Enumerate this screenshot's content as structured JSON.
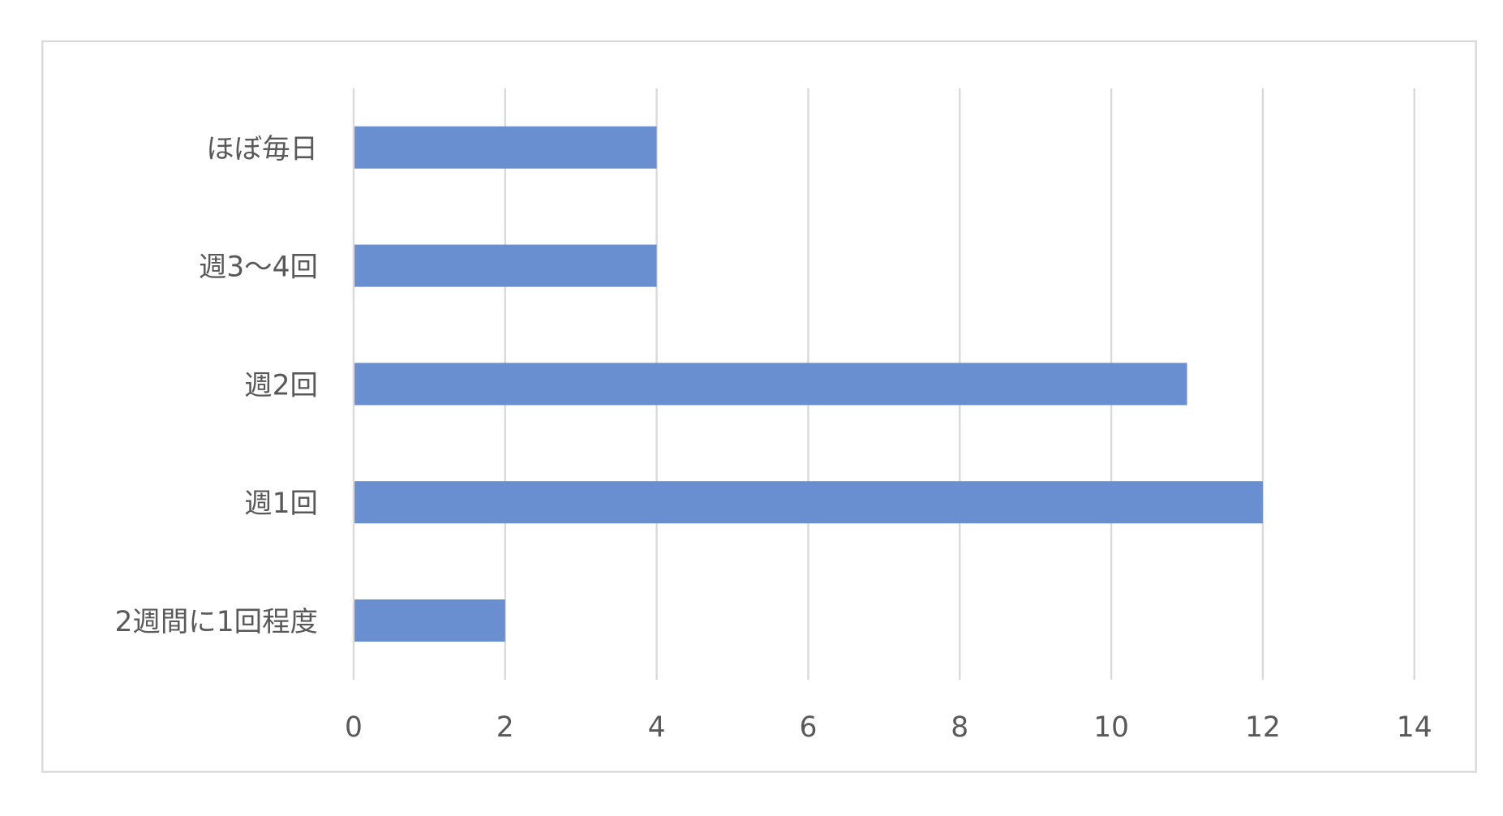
{
  "chart_data": {
    "type": "bar",
    "orientation": "horizontal",
    "title": "",
    "xlabel": "",
    "ylabel": "",
    "categories": [
      "ほぼ毎日",
      "週3〜4回",
      "週2回",
      "週1回",
      "2週間に1回程度"
    ],
    "values": [
      4,
      4,
      11,
      12,
      2
    ],
    "xlim": [
      0,
      14
    ],
    "xticks": [
      "0",
      "2",
      "4",
      "6",
      "8",
      "10",
      "12",
      "14"
    ],
    "grid": true,
    "legend": "none",
    "colors": {
      "bar": "#6A8FD0",
      "grid": "#D9D9D9",
      "text": "#595959",
      "border": "#D9D9D9"
    }
  }
}
